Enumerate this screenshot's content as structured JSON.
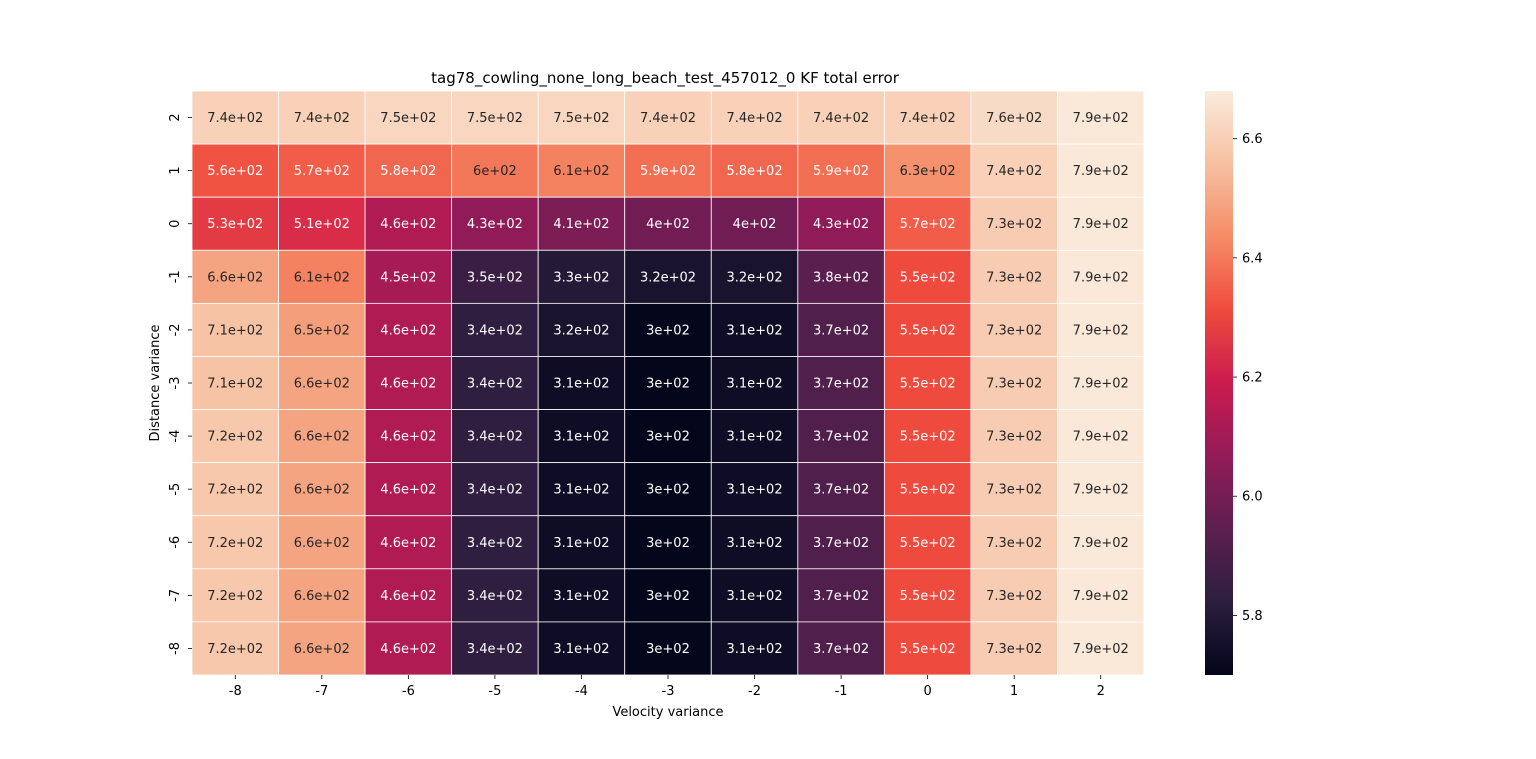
{
  "chart_data": {
    "type": "heatmap",
    "title": "tag78_cowling_none_long_beach_test_457012_0 KF total error",
    "xlabel": "Velocity variance",
    "ylabel": "Distance variance",
    "x_categories": [
      "-8",
      "-7",
      "-6",
      "-5",
      "-4",
      "-3",
      "-2",
      "-1",
      "0",
      "1",
      "2"
    ],
    "y_categories": [
      "2",
      "1",
      "0",
      "-1",
      "-2",
      "-3",
      "-4",
      "-5",
      "-6",
      "-7",
      "-8"
    ],
    "values": [
      [
        740,
        740,
        750,
        750,
        750,
        740,
        740,
        740,
        740,
        760,
        790
      ],
      [
        560,
        570,
        580,
        600,
        610,
        590,
        580,
        590,
        630,
        740,
        790
      ],
      [
        530,
        510,
        460,
        430,
        410,
        400,
        400,
        430,
        570,
        730,
        790
      ],
      [
        660,
        610,
        450,
        350,
        330,
        320,
        320,
        380,
        550,
        730,
        790
      ],
      [
        710,
        650,
        460,
        340,
        320,
        300,
        310,
        370,
        550,
        730,
        790
      ],
      [
        710,
        660,
        460,
        340,
        310,
        300,
        310,
        370,
        550,
        730,
        790
      ],
      [
        720,
        660,
        460,
        340,
        310,
        300,
        310,
        370,
        550,
        730,
        790
      ],
      [
        720,
        660,
        460,
        340,
        310,
        300,
        310,
        370,
        550,
        730,
        790
      ],
      [
        720,
        660,
        460,
        340,
        310,
        300,
        310,
        370,
        550,
        730,
        790
      ],
      [
        720,
        660,
        460,
        340,
        310,
        300,
        310,
        370,
        550,
        730,
        790
      ],
      [
        720,
        660,
        460,
        340,
        310,
        300,
        310,
        370,
        550,
        730,
        790
      ]
    ],
    "annotations": [
      [
        "7.4e+02",
        "7.4e+02",
        "7.5e+02",
        "7.5e+02",
        "7.5e+02",
        "7.4e+02",
        "7.4e+02",
        "7.4e+02",
        "7.4e+02",
        "7.6e+02",
        "7.9e+02"
      ],
      [
        "5.6e+02",
        "5.7e+02",
        "5.8e+02",
        "6e+02",
        "6.1e+02",
        "5.9e+02",
        "5.8e+02",
        "5.9e+02",
        "6.3e+02",
        "7.4e+02",
        "7.9e+02"
      ],
      [
        "5.3e+02",
        "5.1e+02",
        "4.6e+02",
        "4.3e+02",
        "4.1e+02",
        "4e+02",
        "4e+02",
        "4.3e+02",
        "5.7e+02",
        "7.3e+02",
        "7.9e+02"
      ],
      [
        "6.6e+02",
        "6.1e+02",
        "4.5e+02",
        "3.5e+02",
        "3.3e+02",
        "3.2e+02",
        "3.2e+02",
        "3.8e+02",
        "5.5e+02",
        "7.3e+02",
        "7.9e+02"
      ],
      [
        "7.1e+02",
        "6.5e+02",
        "4.6e+02",
        "3.4e+02",
        "3.2e+02",
        "3e+02",
        "3.1e+02",
        "3.7e+02",
        "5.5e+02",
        "7.3e+02",
        "7.9e+02"
      ],
      [
        "7.1e+02",
        "6.6e+02",
        "4.6e+02",
        "3.4e+02",
        "3.1e+02",
        "3e+02",
        "3.1e+02",
        "3.7e+02",
        "5.5e+02",
        "7.3e+02",
        "7.9e+02"
      ],
      [
        "7.2e+02",
        "6.6e+02",
        "4.6e+02",
        "3.4e+02",
        "3.1e+02",
        "3e+02",
        "3.1e+02",
        "3.7e+02",
        "5.5e+02",
        "7.3e+02",
        "7.9e+02"
      ],
      [
        "7.2e+02",
        "6.6e+02",
        "4.6e+02",
        "3.4e+02",
        "3.1e+02",
        "3e+02",
        "3.1e+02",
        "3.7e+02",
        "5.5e+02",
        "7.3e+02",
        "7.9e+02"
      ],
      [
        "7.2e+02",
        "6.6e+02",
        "4.6e+02",
        "3.4e+02",
        "3.1e+02",
        "3e+02",
        "3.1e+02",
        "3.7e+02",
        "5.5e+02",
        "7.3e+02",
        "7.9e+02"
      ],
      [
        "7.2e+02",
        "6.6e+02",
        "4.6e+02",
        "3.4e+02",
        "3.1e+02",
        "3e+02",
        "3.1e+02",
        "3.7e+02",
        "5.5e+02",
        "7.3e+02",
        "7.9e+02"
      ],
      [
        "7.2e+02",
        "6.6e+02",
        "4.6e+02",
        "3.4e+02",
        "3.1e+02",
        "3e+02",
        "3.1e+02",
        "3.7e+02",
        "5.5e+02",
        "7.3e+02",
        "7.9e+02"
      ]
    ],
    "color_scale": "log",
    "colorbar": {
      "range": [
        5.7,
        6.68
      ],
      "ticks": [
        5.8,
        6.0,
        6.2,
        6.4,
        6.6
      ],
      "tick_labels": [
        "5.8",
        "6.0",
        "6.2",
        "6.4",
        "6.6"
      ],
      "placement": "right"
    },
    "colormap": "rocket",
    "colormap_stops": [
      "#03051a",
      "#2c1e3e",
      "#5d1f50",
      "#931b58",
      "#cb1b4f",
      "#ef4b3d",
      "#f58c67",
      "#f6c0a0",
      "#faebdd"
    ],
    "cell_border_color": "#ffffff",
    "grid": false
  }
}
